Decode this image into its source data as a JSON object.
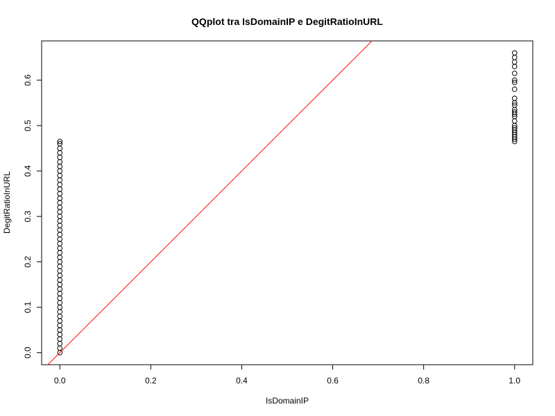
{
  "chart_data": {
    "type": "scatter",
    "title": "QQplot tra IsDomainIP e DegitRatioInURL",
    "x_label": "IsDomainIP",
    "y_label": "DegitRatioInURL",
    "xlim": [
      -0.04,
      1.04
    ],
    "ylim": [
      -0.0264,
      0.6864
    ],
    "xticks": [
      {
        "value": 0,
        "label": "0.0"
      },
      0.2,
      0.4,
      0.6,
      0.8,
      {
        "value": 1,
        "label": "1.0"
      }
    ],
    "yticks": [
      {
        "value": 0,
        "label": "0.0"
      },
      0.1,
      0.2,
      0.3,
      0.4,
      0.5,
      0.6
    ],
    "series": [
      {
        "color": "#000000",
        "x": [
          0,
          0,
          0,
          0,
          0,
          0,
          0,
          0,
          0,
          0,
          0,
          0,
          0,
          0,
          0,
          0,
          0,
          0,
          0,
          0,
          0,
          0,
          0,
          0,
          0,
          0,
          0,
          0,
          0,
          0,
          0,
          0,
          0,
          0,
          0,
          0,
          0,
          0,
          0,
          0,
          0,
          0,
          0,
          0,
          0,
          0,
          0,
          0,
          1,
          1,
          1,
          1,
          1,
          1,
          1,
          1,
          1,
          1,
          1,
          1,
          1,
          1,
          1,
          1,
          1,
          1,
          1,
          1,
          1,
          1,
          1,
          1
        ],
        "values": [
          0,
          0.01,
          0.02,
          0.03,
          0.04,
          0.05,
          0.06,
          0.07,
          0.08,
          0.09,
          0.1,
          0.11,
          0.12,
          0.13,
          0.14,
          0.15,
          0.16,
          0.17,
          0.18,
          0.19,
          0.2,
          0.21,
          0.22,
          0.23,
          0.24,
          0.25,
          0.26,
          0.27,
          0.28,
          0.29,
          0.3,
          0.31,
          0.32,
          0.33,
          0.34,
          0.35,
          0.36,
          0.37,
          0.38,
          0.39,
          0.4,
          0.41,
          0.42,
          0.43,
          0.44,
          0.45,
          0.46,
          0.465,
          0.465,
          0.47,
          0.475,
          0.48,
          0.485,
          0.49,
          0.495,
          0.5,
          0.51,
          0.52,
          0.525,
          0.53,
          0.535,
          0.545,
          0.55,
          0.56,
          0.58,
          0.595,
          0.6,
          0.615,
          0.63,
          0.64,
          0.65,
          0.66
        ]
      }
    ],
    "reference_line": {
      "intercept": 0,
      "slope": 1,
      "color": "#ff0000"
    }
  }
}
